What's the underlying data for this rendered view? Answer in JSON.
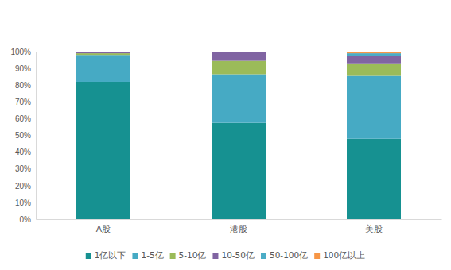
{
  "chart_data": {
    "type": "bar",
    "stacked": true,
    "grid": false,
    "legend": "bottom",
    "categories": [
      "A股",
      "港股",
      "美股"
    ],
    "series": [
      {
        "name": "1亿以下",
        "color": "#169191",
        "values": [
          82,
          57.5,
          48
        ]
      },
      {
        "name": "1-5亿",
        "color": "#46aac4",
        "values": [
          16,
          29,
          37.5
        ]
      },
      {
        "name": "5-10亿",
        "color": "#9bbb59",
        "values": [
          1,
          8,
          7.5
        ]
      },
      {
        "name": "10-50亿",
        "color": "#8064a2",
        "values": [
          0.7,
          5.5,
          4.5
        ]
      },
      {
        "name": "50-100亿",
        "color": "#4bacc6",
        "values": [
          0.2,
          0,
          1.5
        ]
      },
      {
        "name": "100亿以上",
        "color": "#f79646",
        "values": [
          0.1,
          0,
          1
        ]
      }
    ],
    "ylim": [
      0,
      100
    ],
    "yticks": [
      {
        "value": 0,
        "label": "0%"
      },
      {
        "value": 10,
        "label": "10%"
      },
      {
        "value": 20,
        "label": "20%"
      },
      {
        "value": 30,
        "label": "30%"
      },
      {
        "value": 40,
        "label": "40%"
      },
      {
        "value": 50,
        "label": "50%"
      },
      {
        "value": 60,
        "label": "60%"
      },
      {
        "value": 70,
        "label": "70%"
      },
      {
        "value": 80,
        "label": "80%"
      },
      {
        "value": 90,
        "label": "90%"
      },
      {
        "value": 100,
        "label": "100%"
      }
    ]
  }
}
